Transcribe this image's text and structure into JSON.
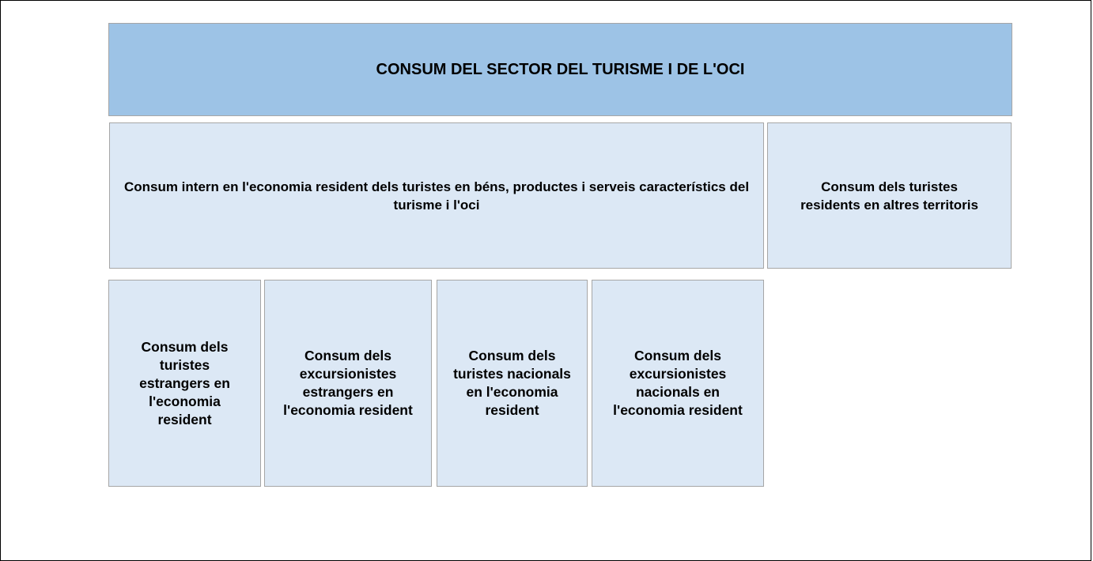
{
  "title": "CONSUM DEL SECTOR DEL TURISME I DE L'OCI",
  "row1": [
    "Consum intern en l'economia resident dels turistes en béns, productes i serveis característics del turisme i l'oci",
    "Consum dels turistes residents en altres territoris"
  ],
  "row2": [
    "Consum dels turistes estrangers en l'economia resident",
    "Consum dels excursionistes estrangers en l'economia resident",
    "Consum dels turistes nacionals en l'economia resident",
    "Consum dels excursionistes nacionals en l'economia resident"
  ]
}
